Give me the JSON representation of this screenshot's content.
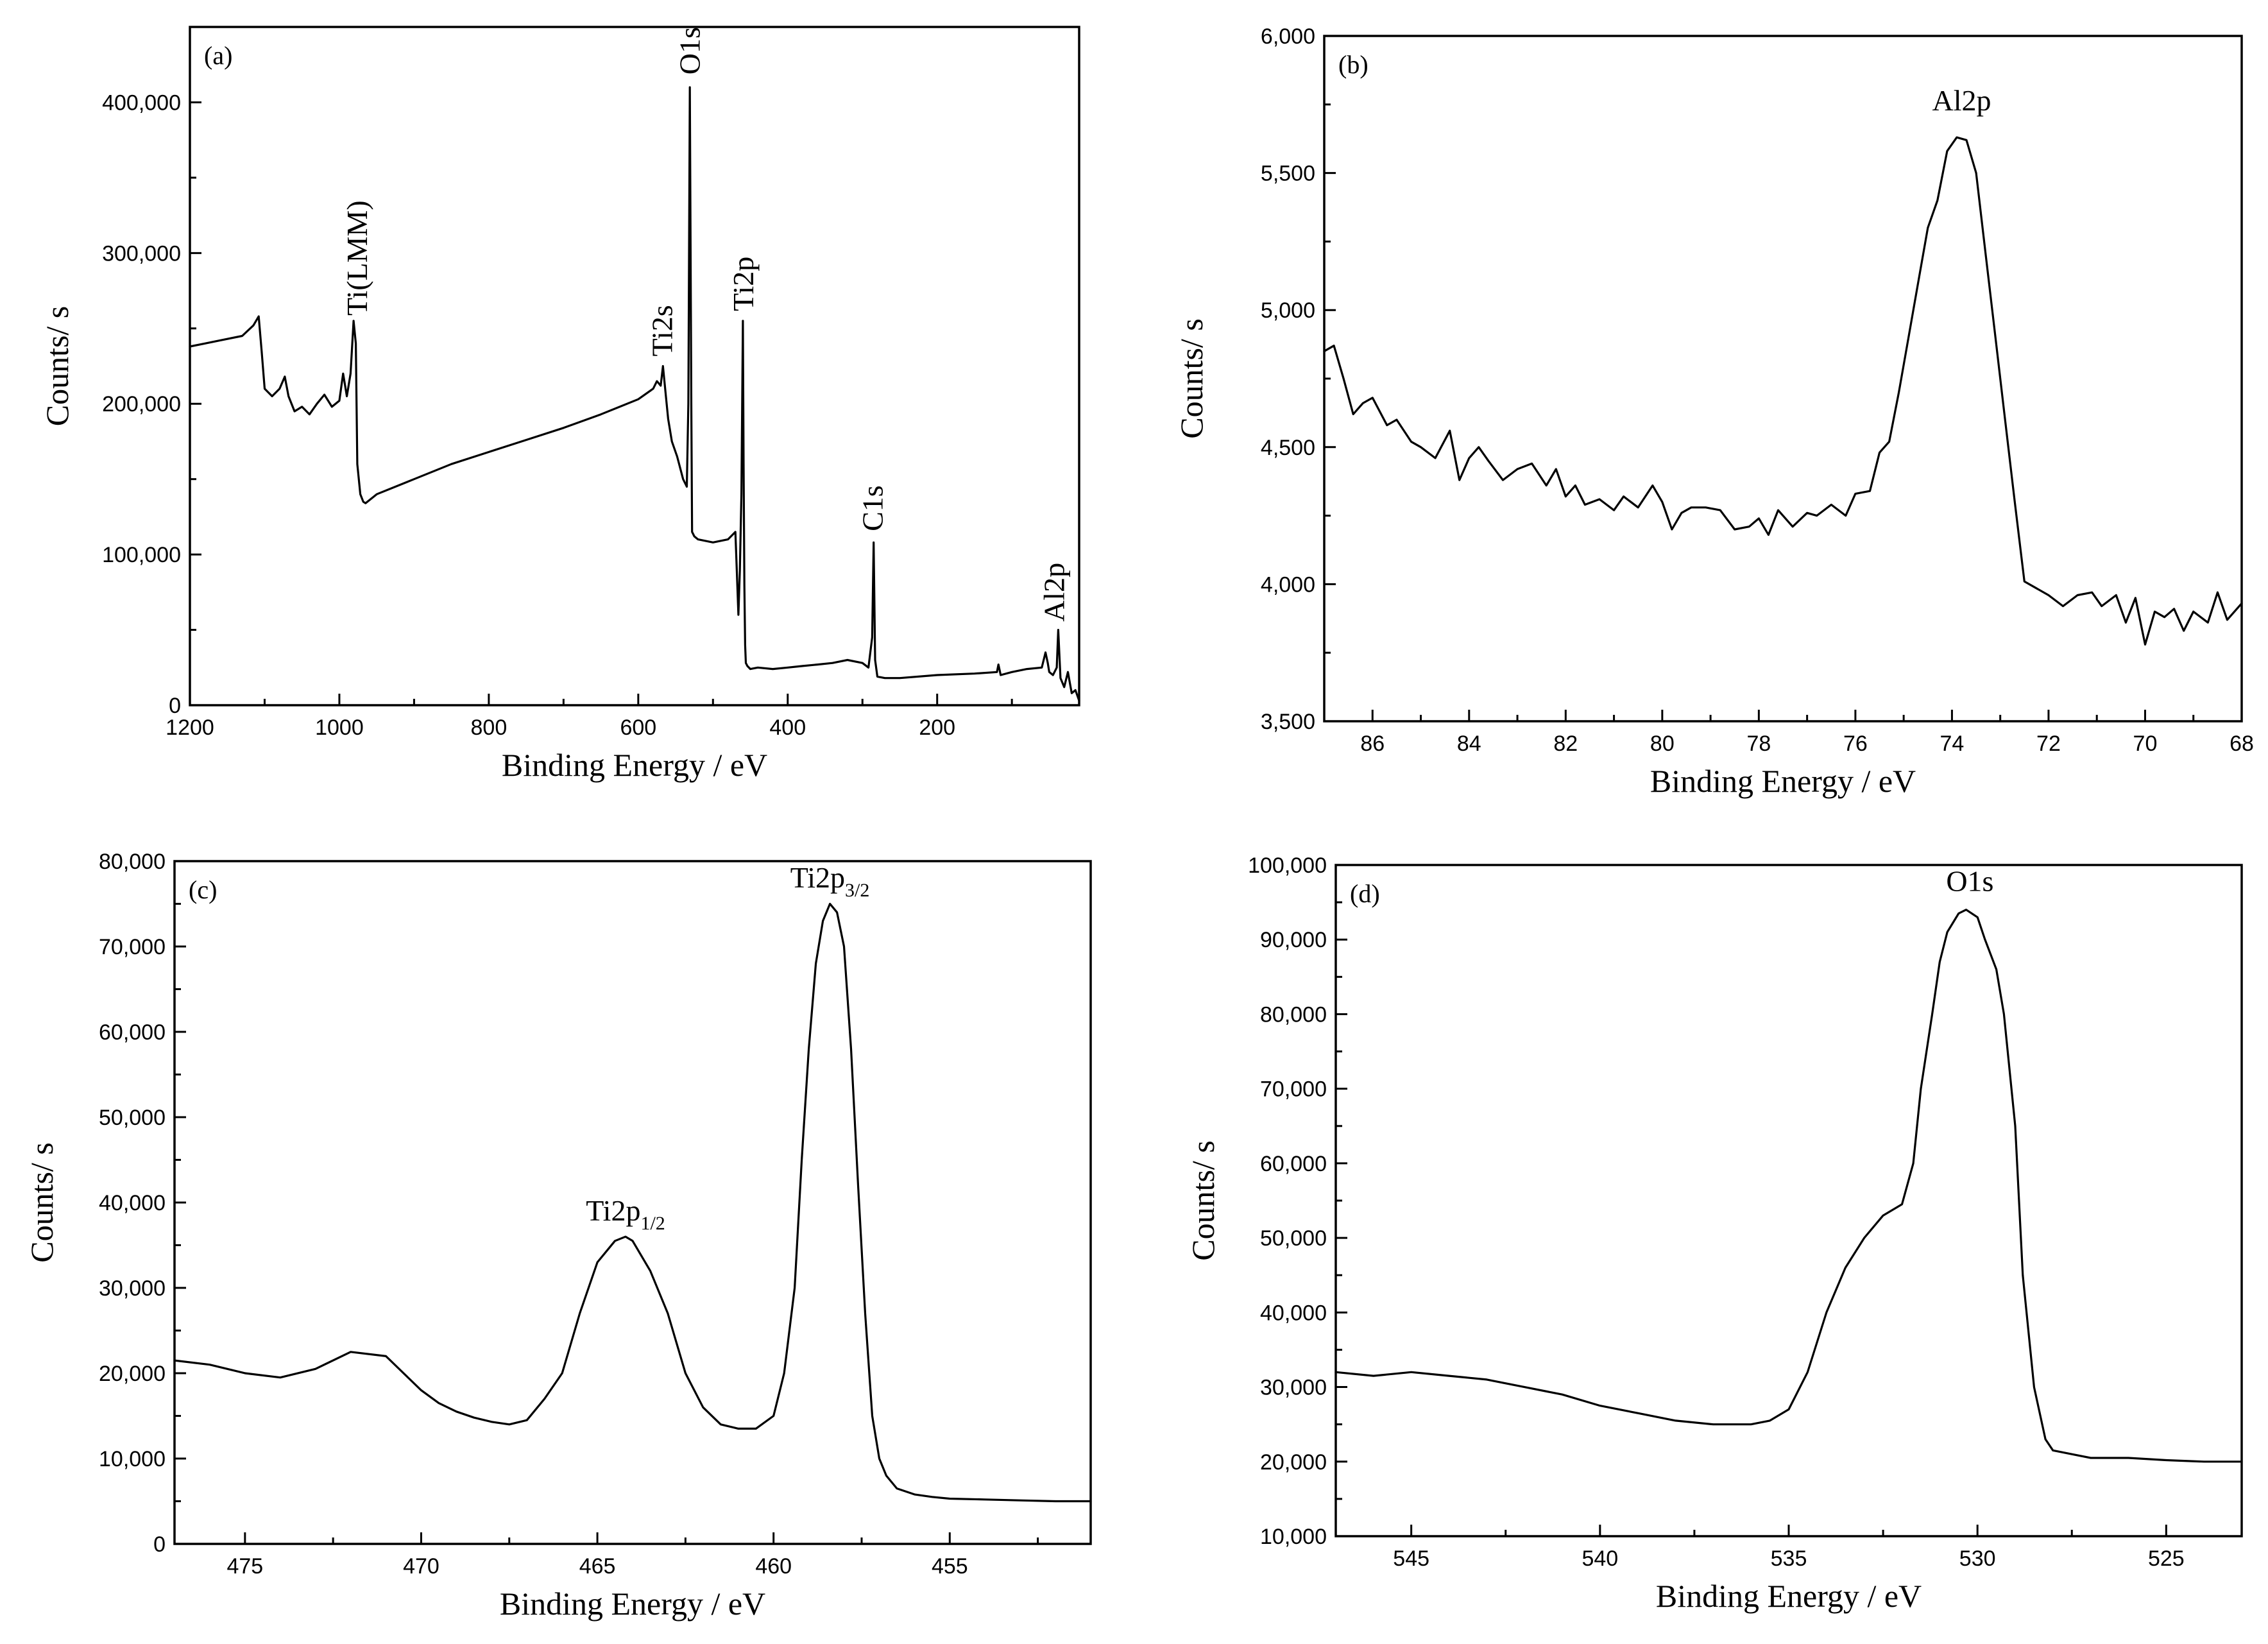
{
  "chart_data": [
    {
      "id": "a",
      "type": "line",
      "panel_label": "(a)",
      "xlabel": "Binding Energy / eV",
      "ylabel": "Counts/ s",
      "xlim": [
        1200,
        10
      ],
      "ylim": [
        0,
        450000
      ],
      "xticks": [
        1200,
        1000,
        800,
        600,
        400,
        200
      ],
      "xtick_labels": [
        "1200",
        "1000",
        "800",
        "600",
        "400",
        "200"
      ],
      "yticks": [
        0,
        100000,
        200000,
        300000,
        400000
      ],
      "ytick_labels": [
        "0",
        "100,000",
        "200,000",
        "300,000",
        "400,000"
      ],
      "x": [
        1200,
        1180,
        1160,
        1130,
        1115,
        1108,
        1104,
        1100,
        1090,
        1080,
        1073,
        1068,
        1060,
        1050,
        1040,
        1030,
        1020,
        1010,
        1000,
        995,
        990,
        985,
        981,
        978,
        976,
        972,
        968,
        965,
        960,
        950,
        900,
        850,
        800,
        750,
        700,
        650,
        600,
        580,
        575,
        570,
        567,
        563,
        560,
        555,
        548,
        540,
        535,
        533,
        531,
        529,
        528,
        525,
        520,
        500,
        480,
        470,
        466,
        464,
        462,
        460,
        459,
        458,
        457,
        456,
        454,
        450,
        440,
        420,
        400,
        380,
        360,
        340,
        320,
        300,
        292,
        287,
        285,
        283,
        280,
        270,
        250,
        200,
        150,
        120,
        118,
        115,
        100,
        80,
        60,
        55,
        52,
        50,
        45,
        40,
        38,
        35,
        30,
        25,
        20,
        15,
        10
      ],
      "y": [
        238000,
        240000,
        242000,
        245000,
        252000,
        258000,
        235000,
        210000,
        205000,
        210000,
        218000,
        205000,
        195000,
        198000,
        193000,
        200000,
        206000,
        198000,
        202000,
        220000,
        205000,
        220000,
        255000,
        240000,
        160000,
        140000,
        135000,
        134000,
        136000,
        140000,
        150000,
        160000,
        168000,
        176000,
        184000,
        193000,
        203000,
        210000,
        215000,
        212000,
        225000,
        205000,
        190000,
        175000,
        165000,
        150000,
        145000,
        200000,
        410000,
        200000,
        115000,
        112000,
        110000,
        108000,
        110000,
        115000,
        60000,
        90000,
        140000,
        255000,
        160000,
        80000,
        40000,
        28000,
        26000,
        24000,
        25000,
        24000,
        25000,
        26000,
        27000,
        28000,
        30000,
        28000,
        25000,
        45000,
        108000,
        30000,
        19000,
        18000,
        18000,
        20000,
        21000,
        22000,
        27000,
        20000,
        22000,
        24000,
        25000,
        35000,
        28000,
        22000,
        20000,
        25000,
        50000,
        18000,
        12000,
        22000,
        8000,
        10000,
        3000
      ],
      "annotations": [
        {
          "text": "Ti(LMM)",
          "x": 975,
          "y": 255000,
          "rotate": -90
        },
        {
          "text": "Ti2s",
          "x": 567,
          "y": 228000,
          "rotate": -90
        },
        {
          "text": "O1s",
          "x": 530,
          "y": 415000,
          "rotate": -90
        },
        {
          "text": "Ti2p",
          "x": 458,
          "y": 258000,
          "rotate": -90
        },
        {
          "text": "C1s",
          "x": 285,
          "y": 112000,
          "rotate": -90
        },
        {
          "text": "Al2p",
          "x": 42,
          "y": 52000,
          "rotate": -90
        }
      ]
    },
    {
      "id": "b",
      "type": "line",
      "panel_label": "(b)",
      "xlabel": "Binding Energy / eV",
      "ylabel": "Counts/ s",
      "xlim": [
        87,
        68
      ],
      "ylim": [
        3500,
        6000
      ],
      "xticks": [
        86,
        84,
        82,
        80,
        78,
        76,
        74,
        72,
        70,
        68
      ],
      "xtick_labels": [
        "86",
        "84",
        "82",
        "80",
        "78",
        "76",
        "74",
        "72",
        "70",
        "68"
      ],
      "yticks": [
        3500,
        4000,
        4500,
        5000,
        5500,
        6000
      ],
      "ytick_labels": [
        "3,500",
        "4,000",
        "4,500",
        "5,000",
        "5,500",
        "6,000"
      ],
      "x": [
        87,
        86.8,
        86.6,
        86.4,
        86.2,
        86,
        85.7,
        85.5,
        85.2,
        85,
        84.7,
        84.4,
        84.2,
        84,
        83.8,
        83.6,
        83.3,
        83,
        82.7,
        82.4,
        82.2,
        82,
        81.8,
        81.6,
        81.3,
        81,
        80.8,
        80.5,
        80.2,
        80,
        79.8,
        79.6,
        79.4,
        79.1,
        78.8,
        78.5,
        78.2,
        78,
        77.8,
        77.6,
        77.3,
        77,
        76.8,
        76.5,
        76.2,
        76,
        75.7,
        75.5,
        75.3,
        75.1,
        74.9,
        74.7,
        74.5,
        74.3,
        74.1,
        73.9,
        73.7,
        73.5,
        73.3,
        73.1,
        72.9,
        72.7,
        72.5,
        72.3,
        72,
        71.7,
        71.4,
        71.1,
        70.9,
        70.6,
        70.4,
        70.2,
        70,
        69.8,
        69.6,
        69.4,
        69.2,
        69,
        68.7,
        68.5,
        68.3,
        68
      ],
      "y": [
        4850,
        4870,
        4750,
        4620,
        4660,
        4680,
        4580,
        4600,
        4520,
        4500,
        4460,
        4560,
        4380,
        4460,
        4500,
        4450,
        4380,
        4420,
        4440,
        4360,
        4420,
        4320,
        4360,
        4290,
        4310,
        4270,
        4320,
        4280,
        4360,
        4300,
        4200,
        4260,
        4280,
        4280,
        4270,
        4200,
        4210,
        4240,
        4180,
        4270,
        4210,
        4260,
        4250,
        4290,
        4250,
        4330,
        4340,
        4480,
        4520,
        4700,
        4900,
        5100,
        5300,
        5400,
        5580,
        5630,
        5620,
        5500,
        5200,
        4900,
        4600,
        4300,
        4010,
        3990,
        3960,
        3920,
        3960,
        3970,
        3920,
        3960,
        3860,
        3950,
        3780,
        3900,
        3880,
        3910,
        3830,
        3900,
        3860,
        3970,
        3870,
        3930
      ],
      "annotations": [
        {
          "text": "Al2p",
          "x": 73.8,
          "y": 5700
        }
      ]
    },
    {
      "id": "c",
      "type": "line",
      "panel_label": "(c)",
      "xlabel": "Binding Energy / eV",
      "ylabel": "Counts/ s",
      "xlim": [
        477,
        451
      ],
      "ylim": [
        0,
        80000
      ],
      "xticks": [
        475,
        470,
        465,
        460,
        455
      ],
      "xtick_labels": [
        "475",
        "470",
        "465",
        "460",
        "455"
      ],
      "yticks": [
        0,
        10000,
        20000,
        30000,
        40000,
        50000,
        60000,
        70000,
        80000
      ],
      "ytick_labels": [
        "0",
        "10,000",
        "20,000",
        "30,000",
        "40,000",
        "50,000",
        "60,000",
        "70,000",
        "80,000"
      ],
      "x": [
        477,
        476,
        475,
        474,
        473,
        472,
        471,
        470.5,
        470,
        469.5,
        469,
        468.5,
        468,
        467.5,
        467,
        466.5,
        466,
        465.5,
        465,
        464.5,
        464.2,
        464,
        463.5,
        463,
        462.5,
        462,
        461.5,
        461,
        460.5,
        460,
        459.7,
        459.4,
        459.2,
        459,
        458.8,
        458.6,
        458.4,
        458.2,
        458,
        457.8,
        457.6,
        457.4,
        457.2,
        457,
        456.8,
        456.5,
        456,
        455.5,
        455,
        454,
        453,
        452,
        451
      ],
      "y": [
        21500,
        21000,
        20000,
        19500,
        20500,
        22500,
        22000,
        20000,
        18000,
        16500,
        15500,
        14800,
        14300,
        14000,
        14500,
        17000,
        20000,
        27000,
        33000,
        35500,
        36000,
        35500,
        32000,
        27000,
        20000,
        16000,
        14000,
        13500,
        13500,
        15000,
        20000,
        30000,
        45000,
        58000,
        68000,
        73000,
        75000,
        74000,
        70000,
        58000,
        42000,
        27000,
        15000,
        10000,
        8000,
        6500,
        5800,
        5500,
        5300,
        5200,
        5100,
        5000,
        5000
      ],
      "annotations": [
        {
          "text": "Ti2p",
          "sub": "1/2",
          "x": 464.2,
          "y": 37000
        },
        {
          "text": "Ti2p",
          "sub": "3/2",
          "x": 458.4,
          "y": 76000
        }
      ]
    },
    {
      "id": "d",
      "type": "line",
      "panel_label": "(d)",
      "xlabel": "Binding Energy / eV",
      "ylabel": "Counts/ s",
      "xlim": [
        547,
        523
      ],
      "ylim": [
        10000,
        100000
      ],
      "xticks": [
        545,
        540,
        535,
        530,
        525
      ],
      "xtick_labels": [
        "545",
        "540",
        "535",
        "530",
        "525"
      ],
      "yticks": [
        10000,
        20000,
        30000,
        40000,
        50000,
        60000,
        70000,
        80000,
        90000,
        100000
      ],
      "ytick_labels": [
        "10,000",
        "20,000",
        "30,000",
        "40,000",
        "50,000",
        "60,000",
        "70,000",
        "80,000",
        "90,000",
        "100,000"
      ],
      "x": [
        547,
        546,
        545,
        544,
        543,
        542,
        541,
        540,
        539,
        538,
        537,
        536,
        535.5,
        535,
        534.5,
        534,
        533.5,
        533,
        532.5,
        532,
        531.7,
        531.5,
        531.2,
        531,
        530.8,
        530.5,
        530.3,
        530,
        529.8,
        529.5,
        529.3,
        529,
        528.8,
        528.5,
        528.2,
        528,
        527.5,
        527,
        526,
        525,
        524,
        523
      ],
      "y": [
        32000,
        31500,
        32000,
        31500,
        31000,
        30000,
        29000,
        27500,
        26500,
        25500,
        25000,
        25000,
        25500,
        27000,
        32000,
        40000,
        46000,
        50000,
        53000,
        54500,
        60000,
        70000,
        80000,
        87000,
        91000,
        93500,
        94000,
        93000,
        90000,
        86000,
        80000,
        65000,
        45000,
        30000,
        23000,
        21500,
        21000,
        20500,
        20500,
        20200,
        20000,
        20000
      ],
      "annotations": [
        {
          "text": "O1s",
          "x": 530.2,
          "y": 95500
        }
      ]
    }
  ]
}
